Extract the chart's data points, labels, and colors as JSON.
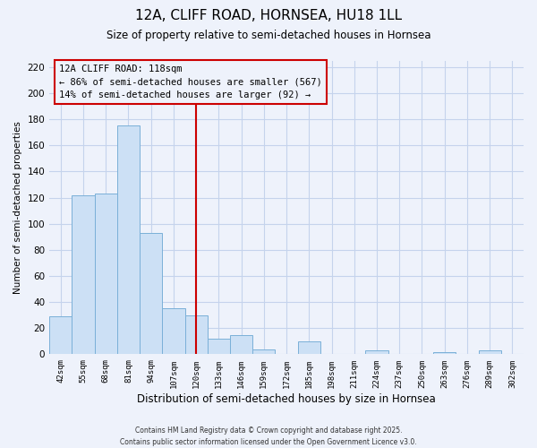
{
  "title": "12A, CLIFF ROAD, HORNSEA, HU18 1LL",
  "subtitle": "Size of property relative to semi-detached houses in Hornsea",
  "xlabel": "Distribution of semi-detached houses by size in Hornsea",
  "ylabel": "Number of semi-detached properties",
  "bins": [
    "42sqm",
    "55sqm",
    "68sqm",
    "81sqm",
    "94sqm",
    "107sqm",
    "120sqm",
    "133sqm",
    "146sqm",
    "159sqm",
    "172sqm",
    "185sqm",
    "198sqm",
    "211sqm",
    "224sqm",
    "237sqm",
    "250sqm",
    "263sqm",
    "276sqm",
    "289sqm",
    "302sqm"
  ],
  "values": [
    29,
    122,
    123,
    175,
    93,
    35,
    30,
    12,
    15,
    4,
    0,
    10,
    0,
    0,
    3,
    0,
    0,
    2,
    0,
    3,
    0
  ],
  "bar_color": "#cce0f5",
  "bar_edge_color": "#7ab0d8",
  "vline_x_index": 6,
  "vline_color": "#cc0000",
  "annotation_title": "12A CLIFF ROAD: 118sqm",
  "annotation_line1": "← 86% of semi-detached houses are smaller (567)",
  "annotation_line2": "14% of semi-detached houses are larger (92) →",
  "annotation_box_edge_color": "#cc0000",
  "ylim": [
    0,
    225
  ],
  "yticks": [
    0,
    20,
    40,
    60,
    80,
    100,
    120,
    140,
    160,
    180,
    200,
    220
  ],
  "footer_line1": "Contains HM Land Registry data © Crown copyright and database right 2025.",
  "footer_line2": "Contains public sector information licensed under the Open Government Licence v3.0.",
  "background_color": "#eef2fb",
  "grid_color": "#c5d3ec"
}
